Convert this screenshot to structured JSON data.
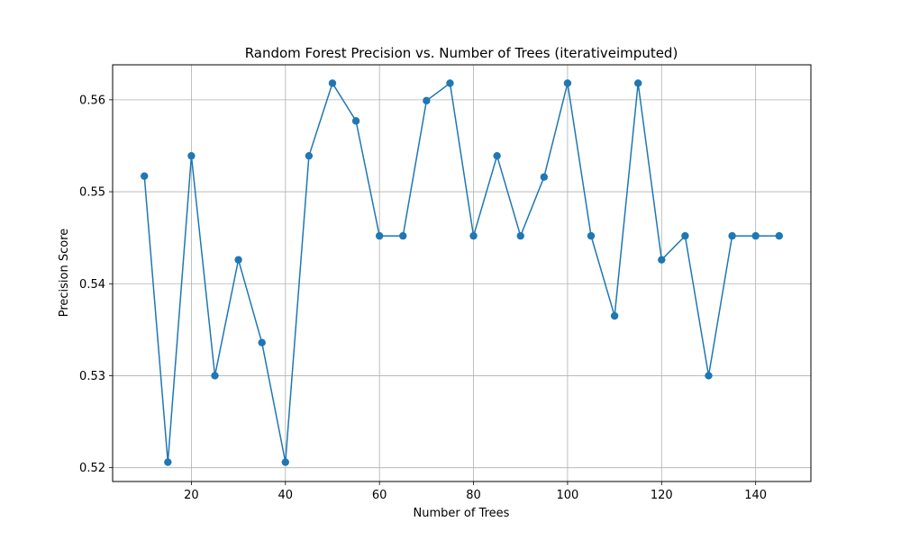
{
  "chart_data": {
    "type": "line",
    "title": "Random Forest Precision vs. Number of Trees (iterativeimputed)",
    "xlabel": "Number of Trees",
    "ylabel": "Precision Score",
    "x": [
      10,
      15,
      20,
      25,
      30,
      35,
      40,
      45,
      50,
      55,
      60,
      65,
      70,
      75,
      80,
      85,
      90,
      95,
      100,
      105,
      110,
      115,
      120,
      125,
      130,
      135,
      140,
      145
    ],
    "series": [
      {
        "values": [
          0.5517,
          0.5206,
          0.5539,
          0.53,
          0.5426,
          0.5336,
          0.5206,
          0.5539,
          0.5618,
          0.5577,
          0.5452,
          0.5452,
          0.5599,
          0.5618,
          0.5452,
          0.5539,
          0.5452,
          0.5516,
          0.5618,
          0.5452,
          0.5365,
          0.5618,
          0.5426,
          0.5452,
          0.53,
          0.5452,
          0.5452,
          0.5452
        ],
        "color": "#1f77b4"
      }
    ],
    "xlim": [
      3.25,
      151.75
    ],
    "ylim": [
      0.5185,
      0.5638
    ],
    "xticks": [
      20,
      40,
      60,
      80,
      100,
      120,
      140
    ],
    "yticks": [
      0.52,
      0.53,
      0.54,
      0.55,
      0.56
    ],
    "xtick_labels": [
      "20",
      "40",
      "60",
      "80",
      "100",
      "120",
      "140"
    ],
    "ytick_labels": [
      "0.52",
      "0.53",
      "0.54",
      "0.55",
      "0.56"
    ],
    "grid": true,
    "marker": "circle"
  }
}
